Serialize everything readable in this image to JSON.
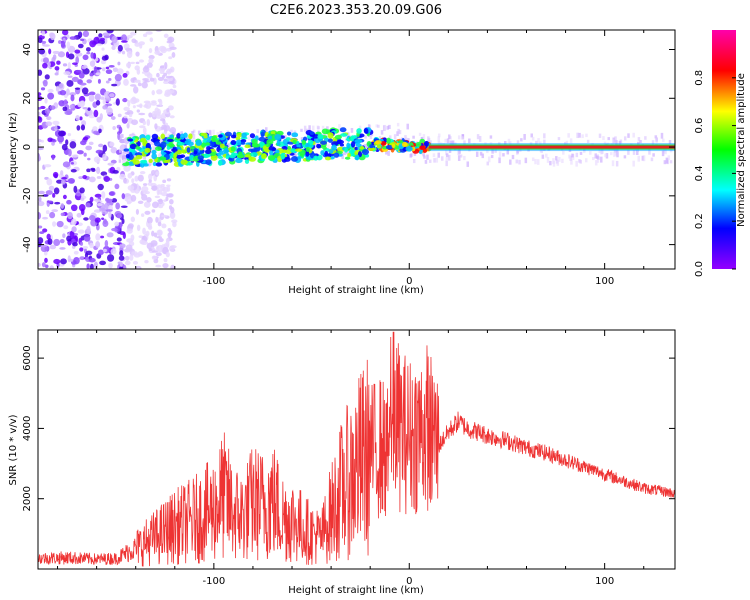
{
  "title": "C2E6.2023.353.20.09.G06",
  "colors": {
    "snr_line": "#ee3333",
    "spectro_ridge": "#e0221e",
    "background": "#ffffff"
  },
  "chart_data": [
    {
      "type": "heatmap",
      "xlabel": "Height of straight line (km)",
      "ylabel": "Frequency (Hz)",
      "xlim": [
        -190,
        136
      ],
      "ylim": [
        -50,
        48
      ],
      "x_ticks": [
        -100,
        0,
        100
      ],
      "x_tick_labels": [
        "-100",
        "0",
        "100"
      ],
      "y_ticks": [
        -40,
        -20,
        0,
        20,
        40
      ],
      "y_tick_labels": [
        "-40",
        "-20",
        "0",
        "20",
        "40"
      ],
      "grid": false,
      "colorbar": {
        "label": "Normalized spectral amplitude",
        "range": [
          0,
          1
        ],
        "ticks": [
          0.0,
          0.2,
          0.4,
          0.6,
          0.8
        ],
        "tick_labels": [
          "0.0",
          "0.2",
          "0.4",
          "0.6",
          "0.8"
        ],
        "colormap": "hsv (violet-blue-cyan-green-yellow-red-magenta)"
      },
      "features": {
        "noise_region_x": [
          -190,
          -145
        ],
        "scatter_band_x": [
          -145,
          10
        ],
        "steady_ridge_x": [
          10,
          136
        ],
        "ridge_frequency_hz": 0
      }
    },
    {
      "type": "line",
      "xlabel": "Height of straight line (km)",
      "ylabel": "SNR (10 * v/v)",
      "xlim": [
        -190,
        136
      ],
      "ylim": [
        0,
        6800
      ],
      "x_ticks": [
        -100,
        0,
        100
      ],
      "x_tick_labels": [
        "-100",
        "0",
        "100"
      ],
      "y_ticks": [
        2000,
        4000,
        6000
      ],
      "y_tick_labels": [
        "2000",
        "4000",
        "6000"
      ],
      "grid": false,
      "series": [
        {
          "x": [
            -190,
            -175,
            -160,
            -150,
            -140,
            -130,
            -120,
            -110,
            -100,
            -95,
            -90,
            -85,
            -80,
            -75,
            -70,
            -65,
            -60,
            -55,
            -50,
            -45,
            -40,
            -35,
            -30,
            -25,
            -20,
            -15,
            -10,
            -8,
            -5,
            0,
            5,
            10,
            15,
            20,
            25,
            30,
            40,
            50,
            60,
            70,
            80,
            90,
            100,
            110,
            120,
            136
          ],
          "y": [
            300,
            320,
            280,
            300,
            600,
            900,
            1200,
            1400,
            1700,
            2100,
            1600,
            1500,
            1900,
            1800,
            2000,
            1500,
            1400,
            1200,
            1000,
            900,
            1600,
            2200,
            2600,
            3000,
            3300,
            3500,
            3200,
            4500,
            4000,
            3800,
            3900,
            4100,
            3500,
            3900,
            4200,
            4000,
            3800,
            3650,
            3450,
            3300,
            3100,
            2900,
            2700,
            2500,
            2300,
            2150
          ]
        }
      ]
    }
  ]
}
